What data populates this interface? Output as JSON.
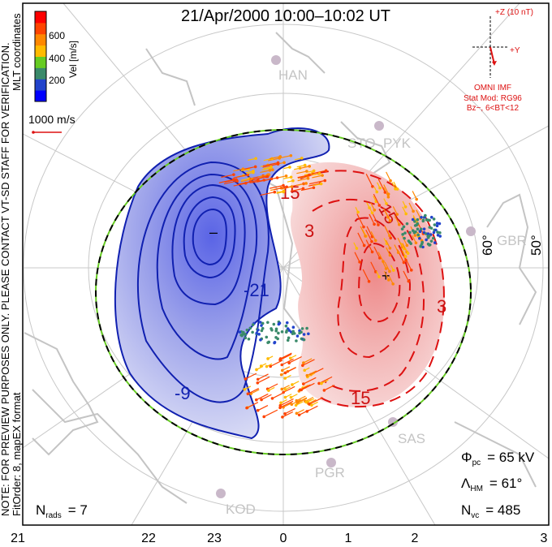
{
  "title": "21/Apr/2000 10:00–10:02 UT",
  "side_text": {
    "coords": "MLT coordinates",
    "note": "NOTE: FOR PREVIEW PURPOSES ONLY. PLEASE CONTACT VT-SD STAFF FOR VERIFICATION.",
    "fit": "FitOrder: 8, mapEX format"
  },
  "color_bar": {
    "label": "Vel [m/s]",
    "ticks": [
      "200",
      "400",
      "600"
    ],
    "colors": [
      "#0000ff",
      "#2244cc",
      "#3a8a6a",
      "#66cc22",
      "#ffbb00",
      "#ff8800",
      "#ff4400",
      "#ff0000"
    ]
  },
  "scale_vector": {
    "label": "1000 m/s"
  },
  "imf": {
    "z_label": "+Z (10 nT)",
    "y_label": "+Y",
    "source": "OMNI IMF",
    "model": "Stat Mod: RG96",
    "condition": "Bz−, 6<BT<12"
  },
  "stations": [
    "HAN",
    "STO",
    "PYK",
    "GBR",
    "SAS",
    "PGR",
    "KOD"
  ],
  "lat_labels": [
    "60°",
    "50°"
  ],
  "contour_labels": {
    "negative": [
      "-21",
      "-9"
    ],
    "positive": [
      "3",
      "3",
      "15",
      "15",
      "15"
    ]
  },
  "stats": {
    "phi_pc": {
      "sym": "Φ",
      "sub": "pc",
      "value": "= 65 kV"
    },
    "lambda_hm": {
      "sym": "Λ",
      "sub": "HM",
      "value": "= 61°"
    },
    "n_vc": {
      "sym": "N",
      "sub": "vc",
      "value": "= 485"
    },
    "n_rads": {
      "sym": "N",
      "sub": "rads",
      "value": "= 7"
    }
  },
  "mlt_axis": [
    "21",
    "22",
    "23",
    "0",
    "1",
    "2",
    "3"
  ],
  "chart_data": {
    "type": "map",
    "title": "21/Apr/2000 10:00–10:02 UT",
    "cross_polar_cap_potential_kV": 65,
    "heppner_maynard_boundary_deg": 61,
    "num_vectors": 485,
    "num_radars": 7,
    "velocity_range_m_s": [
      0,
      800
    ],
    "x_ticks_mlt": [
      "21",
      "22",
      "23",
      "0",
      "1",
      "2",
      "3"
    ]
  }
}
